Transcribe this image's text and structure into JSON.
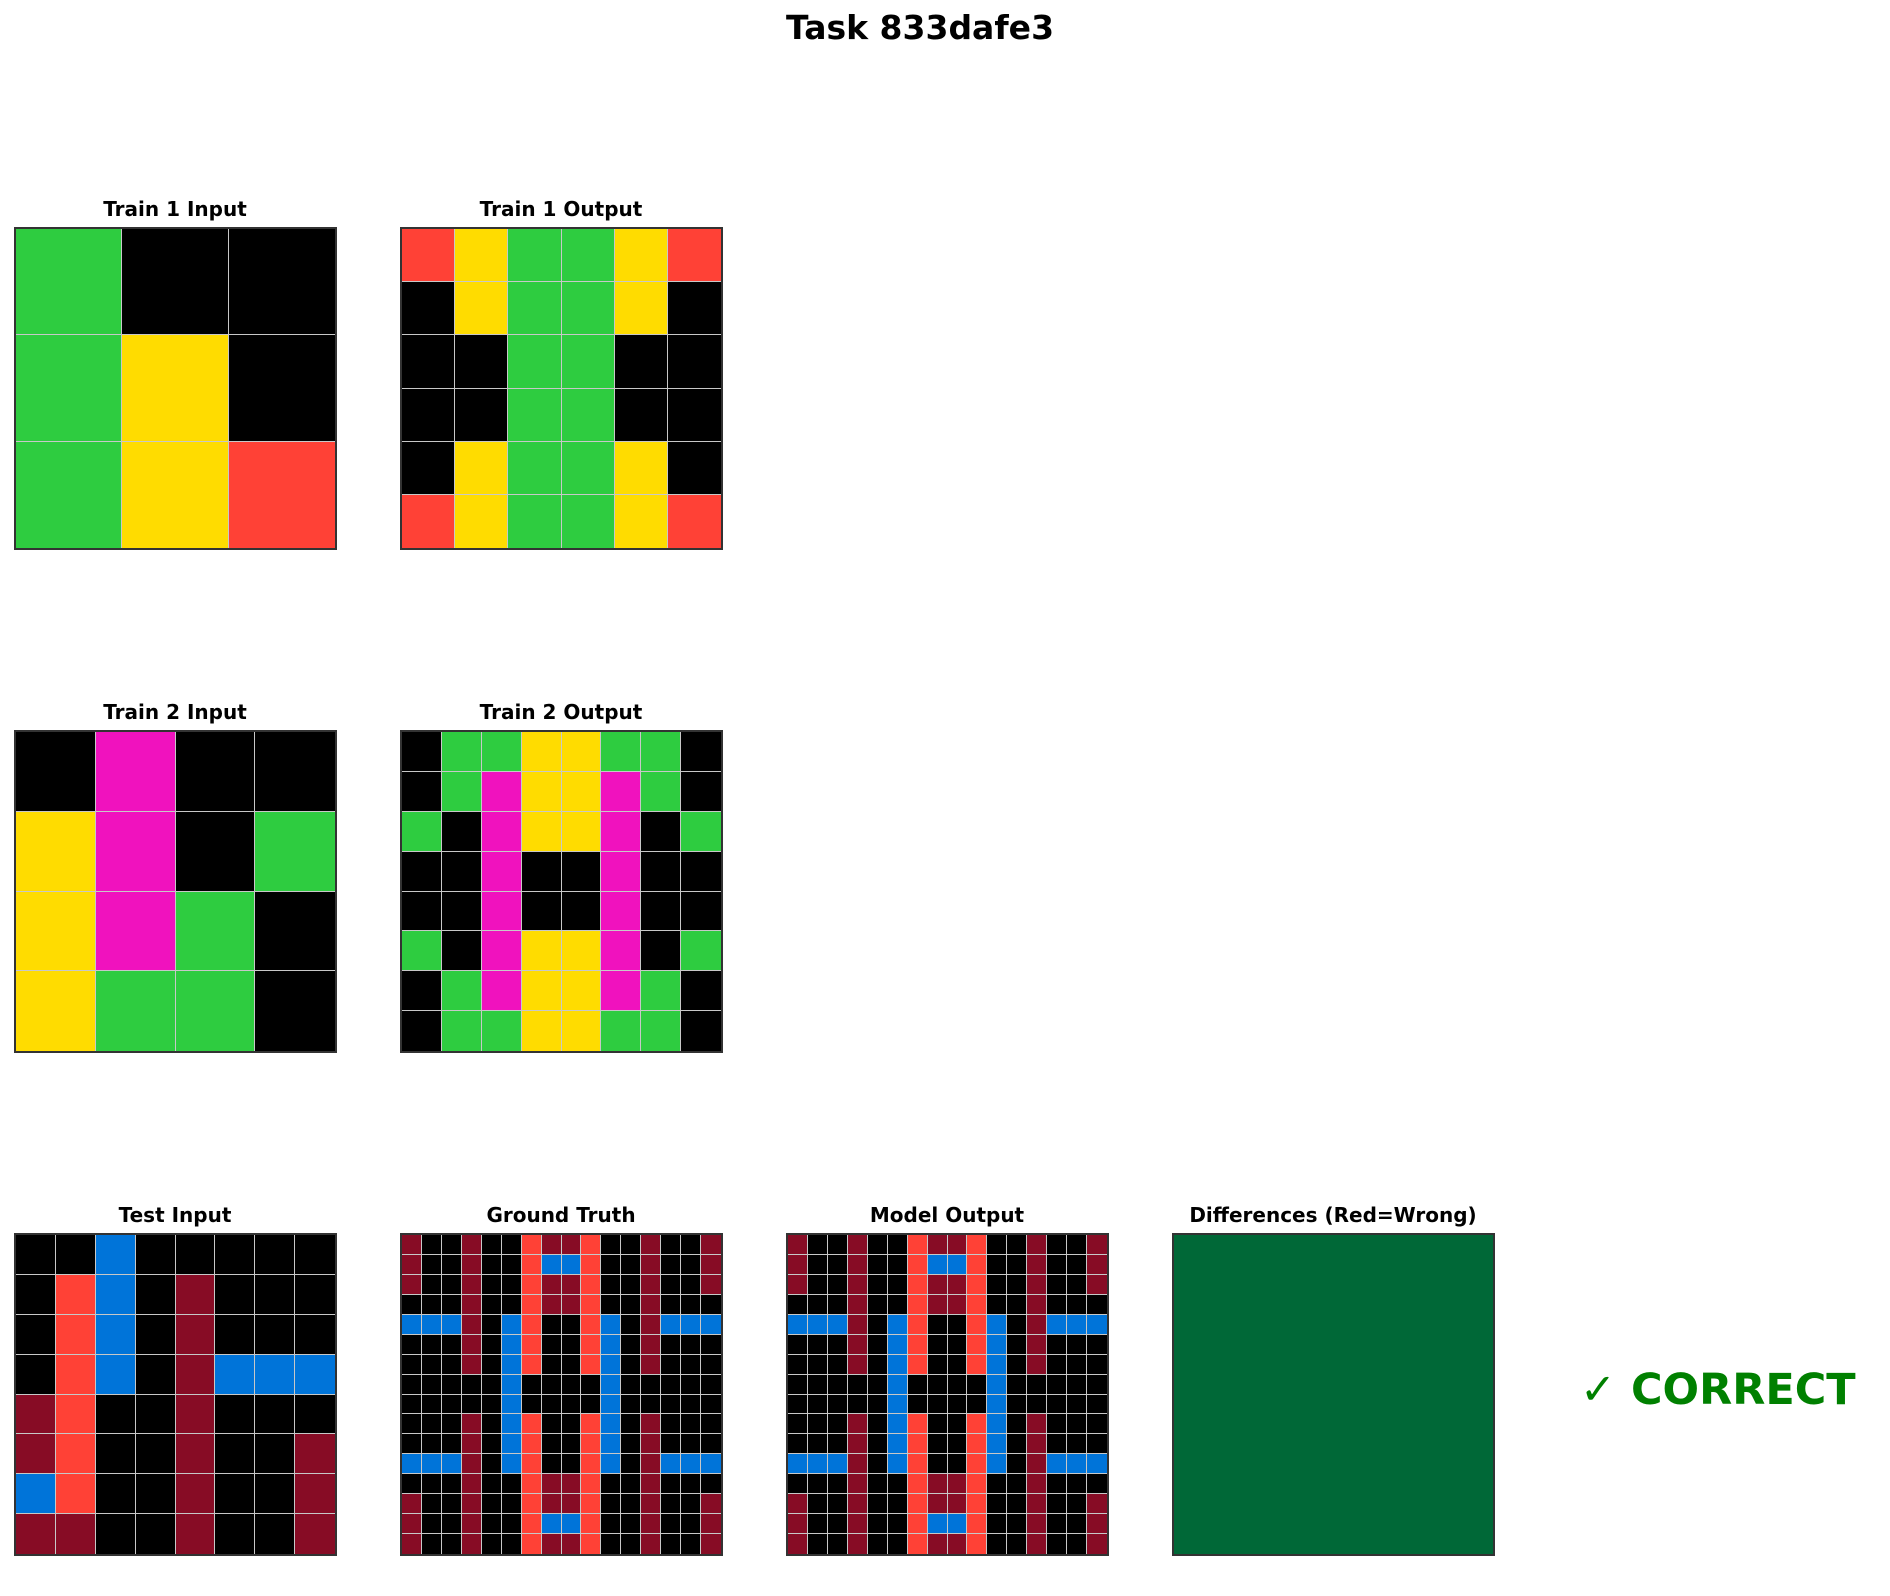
{
  "title": "Task 833dafe3",
  "palette": {
    "0": "#000000",
    "1": "#0074D9",
    "2": "#FF4136",
    "3": "#2ECC40",
    "4": "#FFDC00",
    "6": "#F012BE",
    "9": "#870C25"
  },
  "panels": [
    {
      "title": "Train 1 Input",
      "grid": [
        [
          3,
          0,
          0
        ],
        [
          3,
          4,
          0
        ],
        [
          3,
          4,
          2
        ]
      ]
    },
    {
      "title": "Train 1 Output",
      "grid": [
        [
          2,
          4,
          3,
          3,
          4,
          2
        ],
        [
          0,
          4,
          3,
          3,
          4,
          0
        ],
        [
          0,
          0,
          3,
          3,
          0,
          0
        ],
        [
          0,
          0,
          3,
          3,
          0,
          0
        ],
        [
          0,
          4,
          3,
          3,
          4,
          0
        ],
        [
          2,
          4,
          3,
          3,
          4,
          2
        ]
      ]
    },
    {
      "title": "Train 2 Input",
      "grid": [
        [
          0,
          6,
          0,
          0
        ],
        [
          4,
          6,
          0,
          3
        ],
        [
          4,
          6,
          3,
          0
        ],
        [
          4,
          3,
          3,
          0
        ]
      ]
    },
    {
      "title": "Train 2 Output",
      "grid": [
        [
          0,
          3,
          3,
          4,
          4,
          3,
          3,
          0
        ],
        [
          0,
          3,
          6,
          4,
          4,
          6,
          3,
          0
        ],
        [
          3,
          0,
          6,
          4,
          4,
          6,
          0,
          3
        ],
        [
          0,
          0,
          6,
          0,
          0,
          6,
          0,
          0
        ],
        [
          0,
          0,
          6,
          0,
          0,
          6,
          0,
          0
        ],
        [
          3,
          0,
          6,
          4,
          4,
          6,
          0,
          3
        ],
        [
          0,
          3,
          6,
          4,
          4,
          6,
          3,
          0
        ],
        [
          0,
          3,
          3,
          4,
          4,
          3,
          3,
          0
        ]
      ]
    },
    {
      "title": "Test Input",
      "grid": [
        [
          0,
          0,
          1,
          0,
          0,
          0,
          0,
          0
        ],
        [
          0,
          2,
          1,
          0,
          9,
          0,
          0,
          0
        ],
        [
          0,
          2,
          1,
          0,
          9,
          0,
          0,
          0
        ],
        [
          0,
          2,
          1,
          0,
          9,
          1,
          1,
          1
        ],
        [
          9,
          2,
          0,
          0,
          9,
          0,
          0,
          0
        ],
        [
          9,
          2,
          0,
          0,
          9,
          0,
          0,
          9
        ],
        [
          1,
          2,
          0,
          0,
          9,
          0,
          0,
          9
        ],
        [
          9,
          9,
          0,
          0,
          9,
          0,
          0,
          9
        ]
      ]
    },
    {
      "title": "Ground Truth",
      "grid": [
        [
          9,
          0,
          0,
          9,
          0,
          0,
          2,
          9,
          9,
          2,
          0,
          0,
          9,
          0,
          0,
          9
        ],
        [
          9,
          0,
          0,
          9,
          0,
          0,
          2,
          1,
          1,
          2,
          0,
          0,
          9,
          0,
          0,
          9
        ],
        [
          9,
          0,
          0,
          9,
          0,
          0,
          2,
          9,
          9,
          2,
          0,
          0,
          9,
          0,
          0,
          9
        ],
        [
          0,
          0,
          0,
          9,
          0,
          0,
          2,
          9,
          9,
          2,
          0,
          0,
          9,
          0,
          0,
          0
        ],
        [
          1,
          1,
          1,
          9,
          0,
          1,
          2,
          0,
          0,
          2,
          1,
          0,
          9,
          1,
          1,
          1
        ],
        [
          0,
          0,
          0,
          9,
          0,
          1,
          2,
          0,
          0,
          2,
          1,
          0,
          9,
          0,
          0,
          0
        ],
        [
          0,
          0,
          0,
          9,
          0,
          1,
          2,
          0,
          0,
          2,
          1,
          0,
          9,
          0,
          0,
          0
        ],
        [
          0,
          0,
          0,
          0,
          0,
          1,
          0,
          0,
          0,
          0,
          1,
          0,
          0,
          0,
          0,
          0
        ],
        [
          0,
          0,
          0,
          0,
          0,
          1,
          0,
          0,
          0,
          0,
          1,
          0,
          0,
          0,
          0,
          0
        ],
        [
          0,
          0,
          0,
          9,
          0,
          1,
          2,
          0,
          0,
          2,
          1,
          0,
          9,
          0,
          0,
          0
        ],
        [
          0,
          0,
          0,
          9,
          0,
          1,
          2,
          0,
          0,
          2,
          1,
          0,
          9,
          0,
          0,
          0
        ],
        [
          1,
          1,
          1,
          9,
          0,
          1,
          2,
          0,
          0,
          2,
          1,
          0,
          9,
          1,
          1,
          1
        ],
        [
          0,
          0,
          0,
          9,
          0,
          0,
          2,
          9,
          9,
          2,
          0,
          0,
          9,
          0,
          0,
          0
        ],
        [
          9,
          0,
          0,
          9,
          0,
          0,
          2,
          9,
          9,
          2,
          0,
          0,
          9,
          0,
          0,
          9
        ],
        [
          9,
          0,
          0,
          9,
          0,
          0,
          2,
          1,
          1,
          2,
          0,
          0,
          9,
          0,
          0,
          9
        ],
        [
          9,
          0,
          0,
          9,
          0,
          0,
          2,
          9,
          9,
          2,
          0,
          0,
          9,
          0,
          0,
          9
        ]
      ]
    },
    {
      "title": "Model Output",
      "grid": [
        [
          9,
          0,
          0,
          9,
          0,
          0,
          2,
          9,
          9,
          2,
          0,
          0,
          9,
          0,
          0,
          9
        ],
        [
          9,
          0,
          0,
          9,
          0,
          0,
          2,
          1,
          1,
          2,
          0,
          0,
          9,
          0,
          0,
          9
        ],
        [
          9,
          0,
          0,
          9,
          0,
          0,
          2,
          9,
          9,
          2,
          0,
          0,
          9,
          0,
          0,
          9
        ],
        [
          0,
          0,
          0,
          9,
          0,
          0,
          2,
          9,
          9,
          2,
          0,
          0,
          9,
          0,
          0,
          0
        ],
        [
          1,
          1,
          1,
          9,
          0,
          1,
          2,
          0,
          0,
          2,
          1,
          0,
          9,
          1,
          1,
          1
        ],
        [
          0,
          0,
          0,
          9,
          0,
          1,
          2,
          0,
          0,
          2,
          1,
          0,
          9,
          0,
          0,
          0
        ],
        [
          0,
          0,
          0,
          9,
          0,
          1,
          2,
          0,
          0,
          2,
          1,
          0,
          9,
          0,
          0,
          0
        ],
        [
          0,
          0,
          0,
          0,
          0,
          1,
          0,
          0,
          0,
          0,
          1,
          0,
          0,
          0,
          0,
          0
        ],
        [
          0,
          0,
          0,
          0,
          0,
          1,
          0,
          0,
          0,
          0,
          1,
          0,
          0,
          0,
          0,
          0
        ],
        [
          0,
          0,
          0,
          9,
          0,
          1,
          2,
          0,
          0,
          2,
          1,
          0,
          9,
          0,
          0,
          0
        ],
        [
          0,
          0,
          0,
          9,
          0,
          1,
          2,
          0,
          0,
          2,
          1,
          0,
          9,
          0,
          0,
          0
        ],
        [
          1,
          1,
          1,
          9,
          0,
          1,
          2,
          0,
          0,
          2,
          1,
          0,
          9,
          1,
          1,
          1
        ],
        [
          0,
          0,
          0,
          9,
          0,
          0,
          2,
          9,
          9,
          2,
          0,
          0,
          9,
          0,
          0,
          0
        ],
        [
          9,
          0,
          0,
          9,
          0,
          0,
          2,
          9,
          9,
          2,
          0,
          0,
          9,
          0,
          0,
          9
        ],
        [
          9,
          0,
          0,
          9,
          0,
          0,
          2,
          1,
          1,
          2,
          0,
          0,
          9,
          0,
          0,
          9
        ],
        [
          9,
          0,
          0,
          9,
          0,
          0,
          2,
          9,
          9,
          2,
          0,
          0,
          9,
          0,
          0,
          9
        ]
      ]
    }
  ],
  "differences": {
    "title": "Differences (Red=Wrong)",
    "color": "#006837"
  },
  "verdict": {
    "text": "✓ CORRECT",
    "color": "#008000"
  }
}
